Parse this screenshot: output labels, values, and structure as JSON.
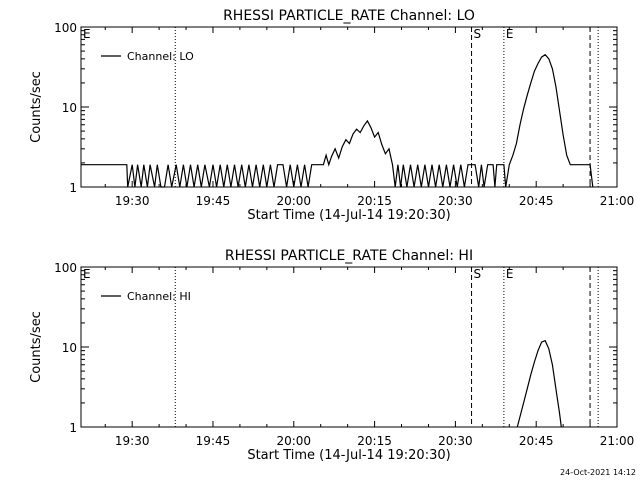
{
  "footer_timestamp": "24-Oct-2021 14:12",
  "chart_data": [
    {
      "type": "line",
      "title": "RHESSI PARTICLE_RATE Channel: LO",
      "xlabel": "Start Time (14-Jul-14 19:20:30)",
      "ylabel": "Counts/sec",
      "yscale": "log",
      "xlim": [
        "19:20:30",
        "21:00:00"
      ],
      "ylim": [
        1,
        100
      ],
      "x_ticks": [
        "19:30",
        "19:45",
        "20:00",
        "20:15",
        "20:30",
        "20:45",
        "21:00"
      ],
      "y_ticks": [
        "1",
        "10",
        "100"
      ],
      "legend": {
        "position": "top-left",
        "entries": [
          "Channel: LO"
        ]
      },
      "markers": [
        {
          "label": "E",
          "time": "19:20:30",
          "style": "none"
        },
        {
          "label": "",
          "time": "19:38:00",
          "style": "dotted"
        },
        {
          "label": "S",
          "time": "20:33:00",
          "style": "dashed"
        },
        {
          "label": "E",
          "time": "20:39:00",
          "style": "dotted"
        },
        {
          "label": "",
          "time": "20:55:00",
          "style": "dashed"
        },
        {
          "label": "",
          "time": "20:56:30",
          "style": "dotted"
        }
      ],
      "series": [
        {
          "name": "Channel: LO",
          "points": [
            [
              "19:20:30",
              1.9
            ],
            [
              "19:29:00",
              1.9
            ],
            [
              "19:29:10",
              1
            ],
            [
              "19:30:00",
              1.9
            ],
            [
              "19:30:30",
              1
            ],
            [
              "19:31:00",
              1.9
            ],
            [
              "19:31:40",
              1
            ],
            [
              "19:32:10",
              1.9
            ],
            [
              "19:32:50",
              1
            ],
            [
              "19:33:20",
              1.9
            ],
            [
              "19:34:10",
              1
            ],
            [
              "19:34:40",
              1.9
            ],
            [
              "19:35:20",
              1
            ],
            [
              "19:36:00",
              1
            ],
            [
              "19:36:40",
              1.9
            ],
            [
              "19:37:20",
              1
            ],
            [
              "19:38:10",
              1.9
            ],
            [
              "19:38:50",
              1
            ],
            [
              "19:39:30",
              1.9
            ],
            [
              "19:40:10",
              1
            ],
            [
              "19:40:50",
              1.9
            ],
            [
              "19:41:30",
              1
            ],
            [
              "19:42:10",
              1.9
            ],
            [
              "19:42:50",
              1
            ],
            [
              "19:43:30",
              1.9
            ],
            [
              "19:44:20",
              1
            ],
            [
              "19:45:00",
              1.9
            ],
            [
              "19:45:40",
              1
            ],
            [
              "19:46:20",
              1.9
            ],
            [
              "19:47:00",
              1
            ],
            [
              "19:47:40",
              1.9
            ],
            [
              "19:48:20",
              1
            ],
            [
              "19:49:00",
              1.9
            ],
            [
              "19:49:40",
              1
            ],
            [
              "19:50:20",
              1.9
            ],
            [
              "19:51:00",
              1
            ],
            [
              "19:51:40",
              1.9
            ],
            [
              "19:52:20",
              1
            ],
            [
              "19:53:00",
              1.9
            ],
            [
              "19:53:40",
              1
            ],
            [
              "19:54:20",
              1.9
            ],
            [
              "19:55:00",
              1
            ],
            [
              "19:55:40",
              1.9
            ],
            [
              "19:56:20",
              1
            ],
            [
              "19:57:00",
              1.9
            ],
            [
              "19:58:00",
              1.9
            ],
            [
              "19:58:40",
              1
            ],
            [
              "19:59:20",
              1.9
            ],
            [
              "20:00:00",
              1
            ],
            [
              "20:00:40",
              1.9
            ],
            [
              "20:01:20",
              1
            ],
            [
              "20:02:00",
              1.9
            ],
            [
              "20:02:40",
              1
            ],
            [
              "20:03:20",
              1.9
            ],
            [
              "20:05:30",
              1.9
            ],
            [
              "20:06:00",
              2.5
            ],
            [
              "20:06:30",
              1.9
            ],
            [
              "20:07:00",
              2.4
            ],
            [
              "20:07:40",
              3.0
            ],
            [
              "20:08:20",
              2.3
            ],
            [
              "20:09:00",
              3.2
            ],
            [
              "20:09:40",
              3.9
            ],
            [
              "20:10:20",
              3.5
            ],
            [
              "20:11:00",
              4.6
            ],
            [
              "20:11:40",
              5.3
            ],
            [
              "20:12:20",
              4.8
            ],
            [
              "20:13:00",
              5.8
            ],
            [
              "20:13:40",
              6.7
            ],
            [
              "20:14:20",
              5.5
            ],
            [
              "20:15:00",
              4.2
            ],
            [
              "20:15:40",
              4.8
            ],
            [
              "20:16:20",
              3.4
            ],
            [
              "20:17:00",
              2.6
            ],
            [
              "20:17:40",
              3.0
            ],
            [
              "20:18:20",
              1.9
            ],
            [
              "20:18:50",
              1
            ],
            [
              "20:19:20",
              1.9
            ],
            [
              "20:19:50",
              1
            ],
            [
              "20:20:20",
              1.9
            ],
            [
              "20:21:00",
              1
            ],
            [
              "20:21:40",
              1.9
            ],
            [
              "20:22:20",
              1
            ],
            [
              "20:23:00",
              1.9
            ],
            [
              "20:23:40",
              1
            ],
            [
              "20:24:20",
              1.9
            ],
            [
              "20:25:00",
              1
            ],
            [
              "20:25:40",
              1.9
            ],
            [
              "20:26:20",
              1
            ],
            [
              "20:27:00",
              1.9
            ],
            [
              "20:27:40",
              1
            ],
            [
              "20:28:20",
              1.9
            ],
            [
              "20:29:00",
              1
            ],
            [
              "20:29:40",
              1.9
            ],
            [
              "20:30:20",
              1
            ],
            [
              "20:31:00",
              1.9
            ],
            [
              "20:31:40",
              1
            ],
            [
              "20:32:20",
              1.9
            ],
            [
              "20:33:00",
              1.9
            ],
            [
              "20:33:40",
              1.9
            ],
            [
              "20:34:20",
              1
            ],
            [
              "20:34:50",
              1.9
            ],
            [
              "20:35:20",
              1
            ],
            [
              "20:36:00",
              1.9
            ],
            [
              "20:37:00",
              1.9
            ],
            [
              "20:37:20",
              1
            ],
            [
              "20:37:40",
              1.9
            ],
            [
              "20:39:00",
              1.9
            ],
            [
              "20:39:20",
              1
            ],
            [
              "20:40:00",
              1.9
            ],
            [
              "20:40:40",
              2.5
            ],
            [
              "20:41:20",
              3.5
            ],
            [
              "20:42:00",
              6.0
            ],
            [
              "20:42:40",
              9.5
            ],
            [
              "20:43:20",
              14
            ],
            [
              "20:44:00",
              20
            ],
            [
              "20:44:40",
              28
            ],
            [
              "20:45:20",
              35
            ],
            [
              "20:46:00",
              42
            ],
            [
              "20:46:40",
              45
            ],
            [
              "20:47:20",
              40
            ],
            [
              "20:48:00",
              30
            ],
            [
              "20:48:40",
              18
            ],
            [
              "20:49:20",
              9.0
            ],
            [
              "20:50:00",
              4.5
            ],
            [
              "20:50:40",
              2.5
            ],
            [
              "20:51:20",
              1.9
            ],
            [
              "20:55:00",
              1.9
            ],
            [
              "20:55:30",
              1
            ]
          ]
        }
      ]
    },
    {
      "type": "line",
      "title": "RHESSI PARTICLE_RATE Channel: HI",
      "xlabel": "Start Time (14-Jul-14 19:20:30)",
      "ylabel": "Counts/sec",
      "yscale": "log",
      "xlim": [
        "19:20:30",
        "21:00:00"
      ],
      "ylim": [
        1,
        100
      ],
      "x_ticks": [
        "19:30",
        "19:45",
        "20:00",
        "20:15",
        "20:30",
        "20:45",
        "21:00"
      ],
      "y_ticks": [
        "1",
        "10",
        "100"
      ],
      "legend": {
        "position": "top-left",
        "entries": [
          "Channel: HI"
        ]
      },
      "markers": [
        {
          "label": "E",
          "time": "19:20:30",
          "style": "none"
        },
        {
          "label": "",
          "time": "19:38:00",
          "style": "dotted"
        },
        {
          "label": "S",
          "time": "20:33:00",
          "style": "dashed"
        },
        {
          "label": "E",
          "time": "20:39:00",
          "style": "dotted"
        },
        {
          "label": "",
          "time": "20:55:00",
          "style": "dashed"
        },
        {
          "label": "",
          "time": "20:56:30",
          "style": "dotted"
        }
      ],
      "series": [
        {
          "name": "Channel: HI",
          "points": [
            [
              "20:41:30",
              1
            ],
            [
              "20:42:40",
              2.0
            ],
            [
              "20:43:20",
              3.0
            ],
            [
              "20:44:00",
              4.5
            ],
            [
              "20:44:40",
              6.5
            ],
            [
              "20:45:20",
              9.0
            ],
            [
              "20:46:00",
              11.5
            ],
            [
              "20:46:40",
              12
            ],
            [
              "20:47:20",
              9.5
            ],
            [
              "20:48:00",
              6.0
            ],
            [
              "20:48:40",
              3.0
            ],
            [
              "20:49:20",
              1.5
            ],
            [
              "20:49:40",
              1
            ]
          ]
        }
      ]
    }
  ]
}
